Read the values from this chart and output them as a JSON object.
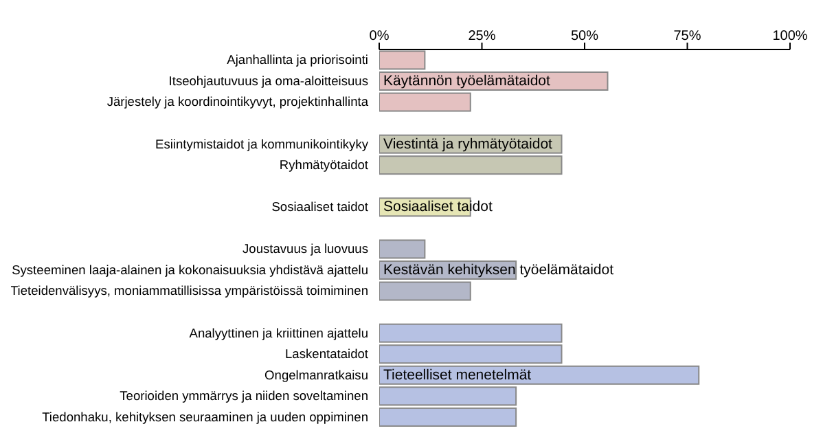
{
  "chart_data": {
    "type": "bar",
    "orientation": "horizontal",
    "categories": [
      "Ajanhallinta ja priorisointi",
      "Itseohjautuvuus ja oma-aloitteisuus",
      "Järjestely ja koordinointikyvyt, projektinhallinta",
      null,
      "Esiintymistaidot ja kommunikointikyky",
      "Ryhmätyötaidot",
      null,
      "Sosiaaliset taidot",
      null,
      "Joustavuus ja luovuus",
      "Systeeminen laaja-alainen ja kokonaisuuksia yhdistävä ajattelu",
      "Tieteidenvälisyys, moniammatillisissa ympäristöissä toimiminen",
      null,
      "Analyyttinen ja kriittinen ajattelu",
      "Laskentataidot",
      "Ongelmanratkaisu",
      "Teorioiden ymmärrys ja niiden soveltaminen",
      "Tiedonhaku, kehityksen seuraaminen ja uuden oppiminen"
    ],
    "values": [
      11.1,
      55.6,
      22.2,
      null,
      44.4,
      44.4,
      null,
      22.2,
      null,
      11.1,
      33.3,
      22.2,
      null,
      44.4,
      44.4,
      77.8,
      33.3,
      33.3
    ],
    "colors": [
      "#e4c1c1",
      "#e4c1c1",
      "#e4c1c1",
      null,
      "#c6c7b3",
      "#c6c7b3",
      null,
      "#e6e6b5",
      null,
      "#b3b7c8",
      "#b3b7c8",
      "#b3b7c8",
      null,
      "#b6c1e3",
      "#b6c1e3",
      "#b6c1e3",
      "#b6c1e3",
      "#b6c1e3"
    ],
    "annotations": [
      {
        "text": "Käytännön työelämätaidot",
        "y": "Itseohjautuvuus ja oma-aloitteisuus"
      },
      {
        "text": "Viestintä ja ryhmätyötaidot",
        "y": "Esiintymistaidot ja kommunikointikyky"
      },
      {
        "text": "Sosiaaliset taidot",
        "y": "Sosiaaliset taidot"
      },
      {
        "text": "Kestävän kehityksen työelämätaidot",
        "y": "Systeeminen laaja-alainen ja kokonaisuuksia yhdistävä ajattelu"
      },
      {
        "text": "Tieteelliset menetelmät",
        "y": "Ongelmanratkaisu"
      }
    ],
    "xlim": [
      0,
      100
    ],
    "xticks": [
      {
        "value": 0,
        "label": "0%"
      },
      {
        "value": 25,
        "label": "25%"
      },
      {
        "value": 50,
        "label": "50%"
      },
      {
        "value": 75,
        "label": "75%"
      },
      {
        "value": 100,
        "label": "100%"
      }
    ],
    "grid": false,
    "legend": false
  }
}
